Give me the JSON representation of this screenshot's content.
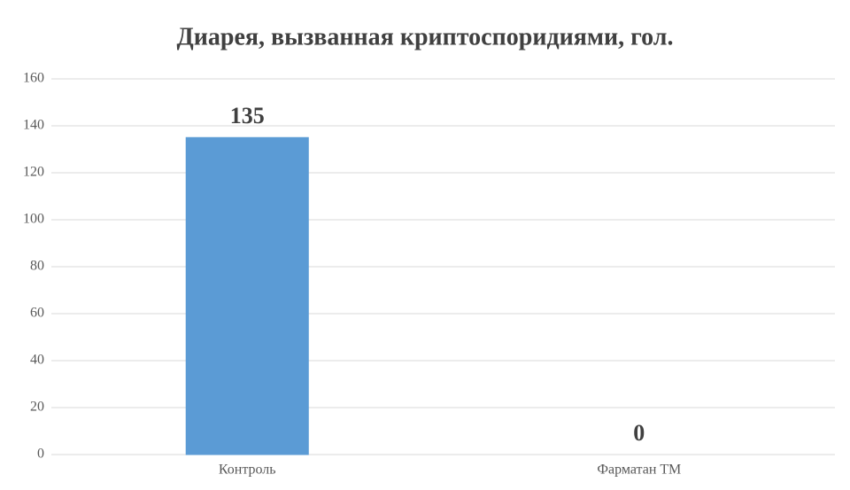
{
  "chart_data": {
    "type": "bar",
    "title": "Диарея, вызванная криптоспоридиями, гол.",
    "categories": [
      "Контроль",
      "Фарматан ТМ"
    ],
    "values": [
      135,
      0
    ],
    "color": "#5b9bd5",
    "ylim": [
      0,
      160
    ],
    "yticks": [
      0,
      20,
      40,
      60,
      80,
      100,
      120,
      140,
      160
    ],
    "grid": true,
    "data_labels": true
  }
}
